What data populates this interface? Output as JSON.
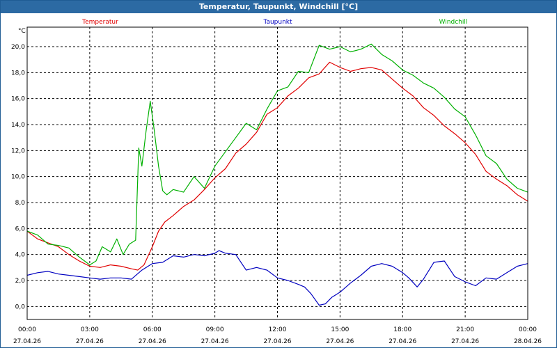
{
  "window": {
    "title": "Temperatur, Taupunkt, Windchill [°C]"
  },
  "chart_data": {
    "type": "line",
    "title": "Temperatur, Taupunkt, Windchill [°C]",
    "ylabel": "°C",
    "xlabel": "",
    "ylim": [
      -1.0,
      21.5
    ],
    "yticks": [
      0.0,
      2.0,
      4.0,
      6.0,
      8.0,
      10.0,
      12.0,
      14.0,
      16.0,
      18.0,
      20.0
    ],
    "ytick_labels": [
      "0,0",
      "2,0",
      "4,0",
      "6,0",
      "8,0",
      "10,0",
      "12,0",
      "14,0",
      "16,0",
      "18,0",
      "20,0"
    ],
    "xlim": [
      0,
      24
    ],
    "xticks": [
      {
        "hour": 0,
        "time": "00:00",
        "date": "27.04.26"
      },
      {
        "hour": 3,
        "time": "03:00",
        "date": "27.04.26"
      },
      {
        "hour": 6,
        "time": "06:00",
        "date": "27.04.26"
      },
      {
        "hour": 9,
        "time": "09:00",
        "date": "27.04.26"
      },
      {
        "hour": 12,
        "time": "12:00",
        "date": "27.04.26"
      },
      {
        "hour": 15,
        "time": "15:00",
        "date": "27.04.26"
      },
      {
        "hour": 18,
        "time": "18:00",
        "date": "27.04.26"
      },
      {
        "hour": 21,
        "time": "21:00",
        "date": "27.04.26"
      },
      {
        "hour": 24,
        "time": "00:00",
        "date": "28.04.26"
      }
    ],
    "grid": true,
    "series": [
      {
        "name": "Temperatur",
        "color": "#e00000",
        "x": [
          0,
          0.5,
          1,
          1.5,
          2,
          2.5,
          3,
          3.5,
          4,
          4.5,
          5,
          5.3,
          5.6,
          6,
          6.3,
          6.6,
          7,
          7.5,
          8,
          8.5,
          9,
          9.5,
          10,
          10.5,
          11,
          11.5,
          12,
          12.5,
          13,
          13.5,
          14,
          14.5,
          15,
          15.5,
          16,
          16.5,
          17,
          17.5,
          18,
          18.5,
          19,
          19.5,
          20,
          20.5,
          21,
          21.5,
          22,
          22.5,
          23,
          23.5,
          24
        ],
        "y": [
          5.8,
          5.2,
          4.9,
          4.6,
          4.0,
          3.5,
          3.1,
          3.0,
          3.2,
          3.1,
          2.9,
          2.8,
          3.2,
          4.6,
          5.8,
          6.5,
          7.0,
          7.7,
          8.2,
          9.0,
          9.9,
          10.6,
          11.8,
          12.5,
          13.4,
          14.8,
          15.3,
          16.2,
          16.8,
          17.6,
          17.9,
          18.8,
          18.4,
          18.1,
          18.3,
          18.4,
          18.2,
          17.5,
          16.8,
          16.2,
          15.3,
          14.7,
          13.9,
          13.3,
          12.6,
          11.7,
          10.4,
          9.8,
          9.3,
          8.6,
          8.1
        ]
      },
      {
        "name": "Taupunkt",
        "color": "#0000c0",
        "x": [
          0,
          0.5,
          1,
          1.5,
          2,
          2.5,
          3,
          3.5,
          4,
          4.5,
          5,
          5.5,
          6,
          6.5,
          7,
          7.5,
          8,
          8.5,
          9,
          9.2,
          9.5,
          10,
          10.5,
          11,
          11.5,
          12,
          12.5,
          13,
          13.3,
          13.6,
          14,
          14.3,
          14.6,
          15,
          15.5,
          16,
          16.5,
          17,
          17.5,
          18,
          18.3,
          18.7,
          19,
          19.5,
          20,
          20.5,
          21,
          21.5,
          22,
          22.5,
          23,
          23.5,
          24
        ],
        "y": [
          2.4,
          2.6,
          2.7,
          2.5,
          2.4,
          2.3,
          2.2,
          2.1,
          2.2,
          2.2,
          2.1,
          2.8,
          3.3,
          3.4,
          3.9,
          3.8,
          4.0,
          3.9,
          4.1,
          4.3,
          4.1,
          4.0,
          2.8,
          3.0,
          2.8,
          2.2,
          2.0,
          1.7,
          1.5,
          1.0,
          0.1,
          0.2,
          0.7,
          1.1,
          1.8,
          2.4,
          3.1,
          3.3,
          3.1,
          2.6,
          2.2,
          1.5,
          2.1,
          3.4,
          3.5,
          2.3,
          1.9,
          1.6,
          2.2,
          2.1,
          2.6,
          3.1,
          3.3
        ]
      },
      {
        "name": "Windchill",
        "color": "#00b000",
        "x": [
          0,
          0.5,
          1,
          1.5,
          2,
          2.5,
          3,
          3.3,
          3.6,
          4,
          4.3,
          4.6,
          4.9,
          5.2,
          5.35,
          5.5,
          5.7,
          5.9,
          6.1,
          6.3,
          6.5,
          6.7,
          7,
          7.5,
          8,
          8.5,
          9,
          9.5,
          10,
          10.5,
          11,
          11.5,
          12,
          12.5,
          13,
          13.5,
          14,
          14.5,
          15,
          15.5,
          16,
          16.5,
          17,
          17.5,
          18,
          18.5,
          19,
          19.5,
          20,
          20.5,
          21,
          21.5,
          22,
          22.5,
          23,
          23.5,
          24
        ],
        "y": [
          5.8,
          5.5,
          4.8,
          4.7,
          4.5,
          3.8,
          3.2,
          3.5,
          4.6,
          4.2,
          5.2,
          4.0,
          4.8,
          5.1,
          12.2,
          10.8,
          13.5,
          15.8,
          13.5,
          10.8,
          8.9,
          8.6,
          9.0,
          8.8,
          10.0,
          9.1,
          10.8,
          11.9,
          13.0,
          14.1,
          13.6,
          15.2,
          16.6,
          16.9,
          18.1,
          18.0,
          20.1,
          19.8,
          20.0,
          19.6,
          19.8,
          20.2,
          19.4,
          18.9,
          18.2,
          17.8,
          17.2,
          16.8,
          16.1,
          15.2,
          14.6,
          13.2,
          11.6,
          11.0,
          9.8,
          9.1,
          8.8
        ]
      }
    ]
  }
}
